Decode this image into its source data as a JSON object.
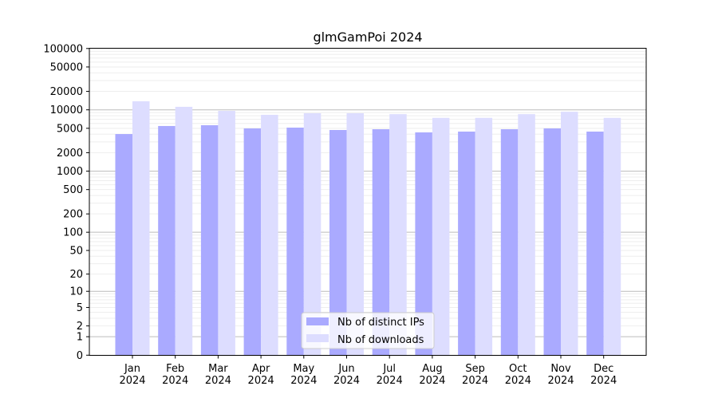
{
  "chart_data": {
    "type": "bar",
    "title": "glmGamPoi 2024",
    "xlabel": "",
    "ylabel": "",
    "yscale": "log(1+x)",
    "ylim": [
      0,
      100000
    ],
    "grid": true,
    "legend_position": "bottom-center",
    "categories": [
      "Jan\n2024",
      "Feb\n2024",
      "Mar\n2024",
      "Apr\n2024",
      "May\n2024",
      "Jun\n2024",
      "Jul\n2024",
      "Aug\n2024",
      "Sep\n2024",
      "Oct\n2024",
      "Nov\n2024",
      "Dec\n2024"
    ],
    "yticks": [
      0,
      1,
      2,
      5,
      10,
      20,
      50,
      100,
      200,
      500,
      1000,
      2000,
      5000,
      10000,
      20000,
      50000,
      100000
    ],
    "series": [
      {
        "name": "Nb of distinct IPs",
        "color": "#aaaaff",
        "values": [
          4030,
          5450,
          5610,
          4980,
          5130,
          4690,
          4830,
          4290,
          4420,
          4830,
          4980,
          4420
        ]
      },
      {
        "name": "Nb of downloads",
        "color": "#ddddff",
        "values": [
          13800,
          11200,
          9600,
          8300,
          8800,
          8800,
          8500,
          7400,
          7400,
          8500,
          9300,
          7400
        ]
      }
    ]
  }
}
